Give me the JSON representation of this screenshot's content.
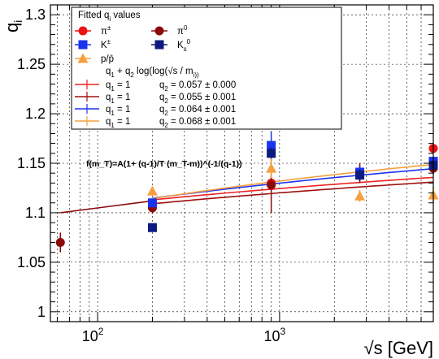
{
  "chart_data": {
    "type": "scatter",
    "x_scale": "log",
    "xlim": [
      55,
      7000
    ],
    "ylim": [
      0.99,
      1.31
    ],
    "grid": true,
    "ylabel": "q_i",
    "xlabel": "√s [GeV]",
    "x_tick_labels": [
      {
        "v": 100,
        "base": "10",
        "exp": "2"
      },
      {
        "v": 1000,
        "base": "10",
        "exp": "3"
      }
    ],
    "y_ticks": [
      1,
      1.05,
      1.1,
      1.15,
      1.2,
      1.25,
      1.3
    ],
    "y_tick_labels": [
      "1",
      "1.05",
      "1.1",
      "1.15",
      "1.2",
      "1.25",
      "1.3"
    ],
    "legend": {
      "position": "top-left",
      "title": "Fitted q_i values",
      "marker_entries": [
        {
          "label": "π^±",
          "marker": "circle",
          "color": "#ee1111"
        },
        {
          "label": "π^0",
          "marker": "circle",
          "color": "#8b0a0a"
        },
        {
          "label": "K^±",
          "marker": "square",
          "color": "#1a33ee"
        },
        {
          "label": "K_s^0",
          "marker": "square",
          "color": "#0d1a80"
        },
        {
          "label": "p/p̄",
          "marker": "triangle",
          "color": "#f5a040"
        }
      ],
      "fit_header": "q_1 + q_2 log(log(√s / m_i))",
      "fit_entries": [
        {
          "q1": "q_1 = 1",
          "q2": "q_2 = 0.057 ± 0.000",
          "color": "#ee2222"
        },
        {
          "q1": "q_1 = 1",
          "q2": "q_2 = 0.055 ± 0.001",
          "color": "#a01010"
        },
        {
          "q1": "q_1 = 1",
          "q2": "q_2 = 0.064 ± 0.001",
          "color": "#2233ee"
        },
        {
          "q1": "q_1 = 1",
          "q2": "q_2 = 0.068 ± 0.001",
          "color": "#f5a040"
        }
      ]
    },
    "formula": "f(m_T)=A(1+ (q-1)/T (m_T-m))^(-1/(q-1))",
    "series": [
      {
        "name": "π^±",
        "marker": "circle",
        "color": "#ee1111",
        "points": [
          [
            200,
            1.108,
            0.004
          ],
          [
            900,
            1.13,
            0.008
          ],
          [
            2760,
            1.14,
            0.008
          ],
          [
            7000,
            1.165,
            0.004
          ]
        ]
      },
      {
        "name": "π^0",
        "marker": "circle",
        "color": "#8b0a0a",
        "points": [
          [
            62.4,
            1.07,
            0.01
          ],
          [
            200,
            1.105,
            0.006
          ],
          [
            900,
            1.128,
            0.028
          ],
          [
            2760,
            1.14,
            0.01
          ],
          [
            7000,
            1.145,
            0.006
          ]
        ]
      },
      {
        "name": "K^±",
        "marker": "square",
        "color": "#1a33ee",
        "points": [
          [
            200,
            1.11,
            0.004
          ],
          [
            900,
            1.168,
            0.014
          ],
          [
            2760,
            1.141,
            0.006
          ],
          [
            7000,
            1.152,
            0.004
          ]
        ]
      },
      {
        "name": "K_s^0",
        "marker": "square",
        "color": "#0d1a80",
        "points": [
          [
            200,
            1.085,
            0.004
          ],
          [
            900,
            1.16,
            0.006
          ],
          [
            2760,
            1.138,
            0.006
          ],
          [
            7000,
            1.148,
            0.004
          ]
        ]
      },
      {
        "name": "p/p̄",
        "marker": "triangle",
        "color": "#f5a040",
        "points": [
          [
            200,
            1.122,
            0.004
          ],
          [
            900,
            1.145,
            0.01
          ],
          [
            2760,
            1.117,
            0.006
          ],
          [
            7000,
            1.118,
            0.008
          ]
        ]
      }
    ],
    "fit_lines": [
      {
        "color": "#ee2222",
        "q1": 1,
        "q2": 0.057,
        "m": 0.14
      },
      {
        "color": "#a01010",
        "q1": 1,
        "q2": 0.055,
        "m": 0.14
      },
      {
        "color": "#2233ee",
        "q1": 1,
        "q2": 0.064,
        "m": 0.494
      },
      {
        "color": "#f5a040",
        "q1": 1,
        "q2": 0.068,
        "m": 0.938
      }
    ],
    "fit_lines_extended": [
      {
        "color": "#8b0a0a",
        "x_from": 62.4,
        "x_to": 200,
        "y_from": 1.1,
        "y_to": 1.112
      }
    ]
  }
}
